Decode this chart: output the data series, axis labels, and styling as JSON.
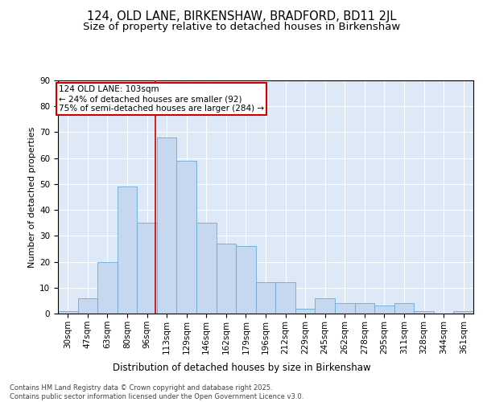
{
  "title1": "124, OLD LANE, BIRKENSHAW, BRADFORD, BD11 2JL",
  "title2": "Size of property relative to detached houses in Birkenshaw",
  "xlabel": "Distribution of detached houses by size in Birkenshaw",
  "ylabel": "Number of detached properties",
  "bar_values": [
    1,
    6,
    20,
    49,
    35,
    68,
    59,
    35,
    27,
    26,
    12,
    12,
    2,
    6,
    4,
    4,
    3,
    4,
    1,
    0,
    1
  ],
  "bin_labels": [
    "30sqm",
    "47sqm",
    "63sqm",
    "80sqm",
    "96sqm",
    "113sqm",
    "129sqm",
    "146sqm",
    "162sqm",
    "179sqm",
    "196sqm",
    "212sqm",
    "229sqm",
    "245sqm",
    "262sqm",
    "278sqm",
    "295sqm",
    "311sqm",
    "328sqm",
    "344sqm",
    "361sqm"
  ],
  "bar_color": "#c5d8f0",
  "bar_edge_color": "#6aaad4",
  "background_color": "#dde9f7",
  "grid_color": "#ffffff",
  "vline_color": "#cc0000",
  "annotation_text": "124 OLD LANE: 103sqm\n← 24% of detached houses are smaller (92)\n75% of semi-detached houses are larger (284) →",
  "annotation_box_facecolor": "#ffffff",
  "annotation_box_edgecolor": "#cc0000",
  "ylim": [
    0,
    90
  ],
  "yticks": [
    0,
    10,
    20,
    30,
    40,
    50,
    60,
    70,
    80,
    90
  ],
  "footnote": "Contains HM Land Registry data © Crown copyright and database right 2025.\nContains public sector information licensed under the Open Government Licence v3.0.",
  "title1_fontsize": 10.5,
  "title2_fontsize": 9.5,
  "xlabel_fontsize": 8.5,
  "ylabel_fontsize": 8,
  "tick_fontsize": 7.5,
  "annot_fontsize": 7.5,
  "footnote_fontsize": 6
}
